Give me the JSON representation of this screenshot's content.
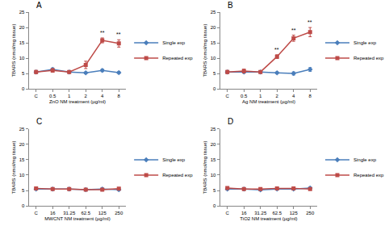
{
  "chart_data": [
    {
      "type": "line",
      "label": "A",
      "x_title": "ZnO NM treatment (µg/ml)",
      "y_title": "TBARS (nmol/mg tissue)",
      "categories": [
        "C",
        "0.5",
        "1",
        "2",
        "4",
        "8"
      ],
      "ylim": [
        0,
        25
      ],
      "yticks": [
        0,
        5,
        10,
        15,
        20,
        25
      ],
      "legend": "right",
      "series": [
        {
          "name": "Single exp",
          "color": "#4a7ebb",
          "marker": "diamond",
          "values": [
            5.5,
            6.3,
            5.5,
            5.2,
            6.0,
            5.3
          ],
          "errors": [
            0.4,
            0.5,
            0.3,
            0.3,
            0.4,
            0.3
          ]
        },
        {
          "name": "Repeated exp",
          "color": "#be4b48",
          "marker": "square",
          "values": [
            5.5,
            6.0,
            5.5,
            7.8,
            15.8,
            14.8
          ],
          "errors": [
            0.5,
            0.6,
            0.4,
            1.2,
            0.8,
            1.2
          ]
        }
      ],
      "annotations": [
        {
          "category": "4",
          "text": "**"
        },
        {
          "category": "8",
          "text": "**"
        }
      ]
    },
    {
      "type": "line",
      "label": "B",
      "x_title": "Ag NM treatment (µg/ml)",
      "y_title": "TBARS (nmol/mg tissue)",
      "categories": [
        "C",
        "0.5",
        "1",
        "2",
        "4",
        "8"
      ],
      "ylim": [
        0,
        25
      ],
      "yticks": [
        0,
        5,
        10,
        15,
        20,
        25
      ],
      "legend": "right",
      "series": [
        {
          "name": "Single exp",
          "color": "#4a7ebb",
          "marker": "diamond",
          "values": [
            5.5,
            5.5,
            5.5,
            5.2,
            5.0,
            6.3
          ],
          "errors": [
            0.4,
            0.4,
            0.3,
            0.3,
            0.5,
            0.6
          ]
        },
        {
          "name": "Repeated exp",
          "color": "#be4b48",
          "marker": "square",
          "values": [
            5.5,
            5.8,
            5.5,
            10.5,
            16.5,
            18.5
          ],
          "errors": [
            0.5,
            0.6,
            0.4,
            0.6,
            1.0,
            1.5
          ]
        }
      ],
      "annotations": [
        {
          "category": "2",
          "text": "**"
        },
        {
          "category": "4",
          "text": "**"
        },
        {
          "category": "8",
          "text": "**"
        }
      ]
    },
    {
      "type": "line",
      "label": "C",
      "x_title": "MWCNT NM treatment (µg/ml)",
      "y_title": "TBARS (nmol/mg tissue)",
      "categories": [
        "C",
        "16",
        "31.25",
        "62.5",
        "125",
        "250"
      ],
      "ylim": [
        0,
        25
      ],
      "yticks": [
        0,
        5,
        10,
        15,
        20,
        25
      ],
      "legend": "right",
      "series": [
        {
          "name": "Single exp",
          "color": "#4a7ebb",
          "marker": "diamond",
          "values": [
            5.5,
            5.5,
            5.5,
            5.3,
            5.5,
            5.3
          ],
          "errors": [
            0.3,
            0.3,
            0.3,
            0.3,
            0.3,
            0.3
          ]
        },
        {
          "name": "Repeated exp",
          "color": "#be4b48",
          "marker": "square",
          "values": [
            5.7,
            5.5,
            5.5,
            5.3,
            5.3,
            5.6
          ],
          "errors": [
            0.3,
            0.3,
            0.3,
            0.3,
            0.3,
            0.3
          ]
        }
      ]
    },
    {
      "type": "line",
      "label": "D",
      "x_title": "TiO2 NM treatment (µg/ml)",
      "y_title": "TBARS (nmol/mg tissue)",
      "categories": [
        "C",
        "16",
        "31.25",
        "62.5",
        "125",
        "250"
      ],
      "ylim": [
        0,
        25
      ],
      "yticks": [
        0,
        5,
        10,
        15,
        20,
        25
      ],
      "legend": "right",
      "series": [
        {
          "name": "Single exp",
          "color": "#4a7ebb",
          "marker": "diamond",
          "values": [
            5.5,
            5.5,
            5.2,
            5.5,
            5.5,
            5.8
          ],
          "errors": [
            0.3,
            0.3,
            0.3,
            0.3,
            0.3,
            0.3
          ]
        },
        {
          "name": "Repeated exp",
          "color": "#be4b48",
          "marker": "square",
          "values": [
            5.8,
            5.5,
            5.5,
            5.7,
            5.7,
            5.5
          ],
          "errors": [
            0.3,
            0.3,
            0.3,
            0.3,
            0.3,
            0.3
          ]
        }
      ]
    }
  ]
}
